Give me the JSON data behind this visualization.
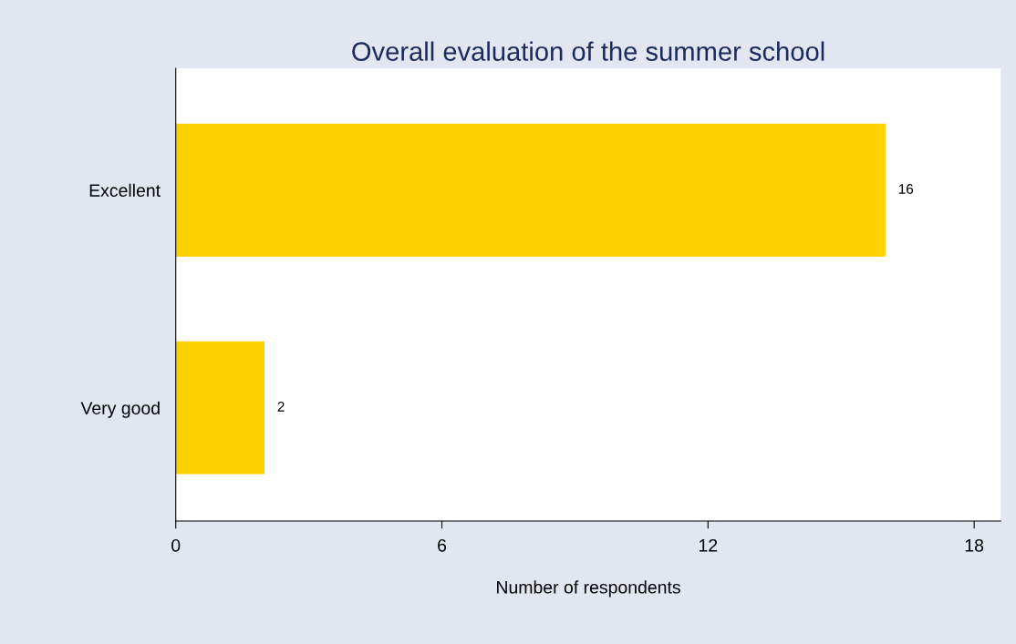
{
  "chart_data": {
    "type": "bar",
    "orientation": "horizontal",
    "title": "Overall evaluation of the summer school",
    "xlabel": "Number of respondents",
    "categories": [
      "Excellent",
      "Very good"
    ],
    "values": [
      16,
      2
    ],
    "color": "#ffd100",
    "xlim": [
      0,
      18.6
    ],
    "xticks": [
      0,
      6,
      12,
      18
    ],
    "grid": false,
    "data_labels": true
  }
}
